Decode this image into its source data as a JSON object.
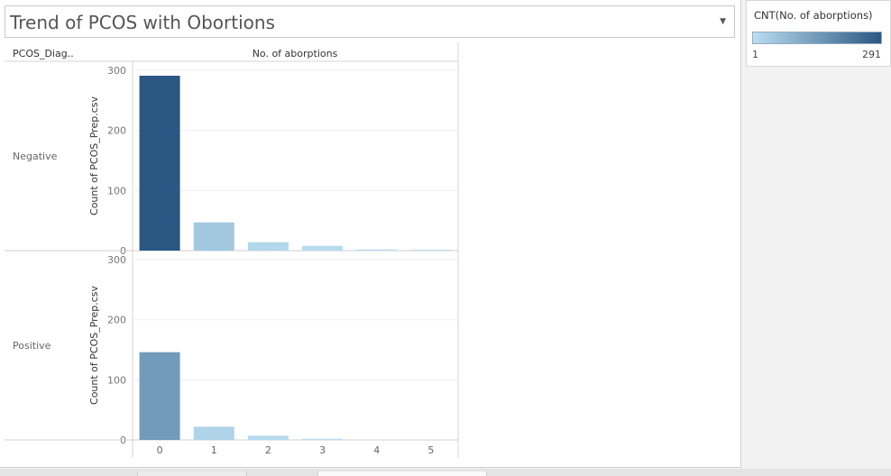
{
  "title": "Trend of PCOS with Obortions",
  "row_header": "PCOS_Diag..",
  "column_header": "No. of aborptions",
  "legend": {
    "title": "CNT(No. of aborptions)",
    "min_label": "1",
    "max_label": "291",
    "color_low": "#b9ddf1",
    "color_high": "#2a5783"
  },
  "chart_data": {
    "type": "bar",
    "title": "Trend of PCOS with Obortions",
    "xlabel": "No. of aborptions",
    "ylabel": "Count of PCOS_Prep.csv",
    "categories": [
      "0",
      "1",
      "2",
      "3",
      "4",
      "5"
    ],
    "ylim": [
      0,
      300
    ],
    "yticks": [
      "0",
      "100",
      "200",
      "300"
    ],
    "grid": true,
    "panels": [
      {
        "label": "Negative",
        "values": [
          291,
          47,
          14,
          8,
          2,
          1
        ]
      },
      {
        "label": "Positive",
        "values": [
          146,
          22,
          7,
          2,
          0,
          0
        ]
      }
    ]
  }
}
